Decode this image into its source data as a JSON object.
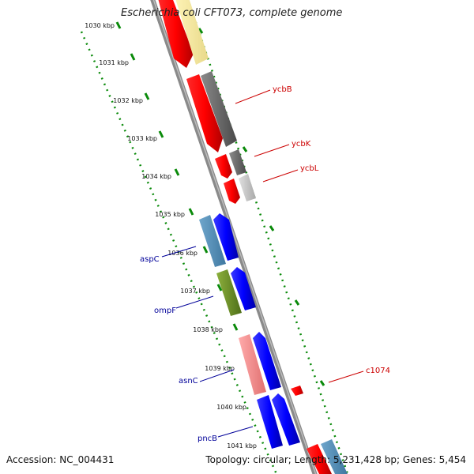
{
  "title": "Escherichia coli CFT073, complete genome",
  "accession": "Accession: NC_004431",
  "topology": "Topology: circular; Length: 5,231,428 bp; Genes: 5,454",
  "colors": {
    "backbone": "#8a8a8a",
    "ruler_dots": "#0a8a0a",
    "ruler_label": "#111111",
    "label_forward": "#cc0000",
    "label_reverse": "#000099"
  },
  "ruler_ticks": [
    "1030 kbp",
    "1031 kbp",
    "1032 kbp",
    "1033 kbp",
    "1034 kbp",
    "1035 kbp",
    "1036 kbp",
    "1037 kbp",
    "1038 kbp",
    "1039 kbp",
    "1040 kbp",
    "1041 kbp"
  ],
  "gene_labels": [
    {
      "text": "ycbB",
      "strand": "forward"
    },
    {
      "text": "ycbK",
      "strand": "forward"
    },
    {
      "text": "ycbL",
      "strand": "forward"
    },
    {
      "text": "aspC",
      "strand": "reverse"
    },
    {
      "text": "ompF",
      "strand": "reverse"
    },
    {
      "text": "asnC",
      "strand": "reverse"
    },
    {
      "text": "c1074",
      "strand": "forward"
    },
    {
      "text": "pncB",
      "strand": "reverse"
    }
  ]
}
